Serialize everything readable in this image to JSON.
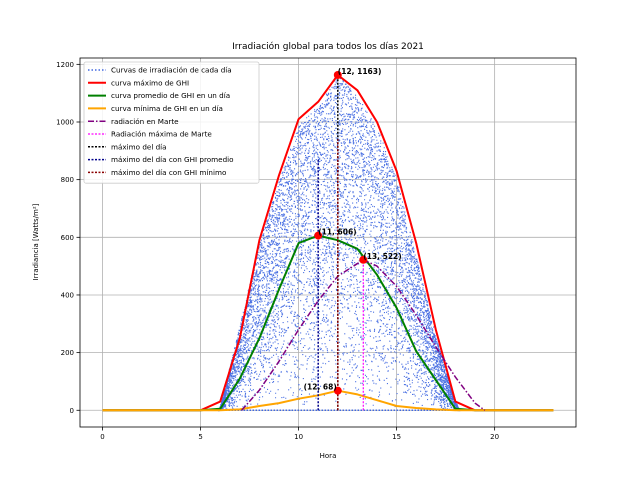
{
  "chart_data": {
    "type": "line",
    "title": "Irradiación global para todos los días 2021",
    "xlabel": "Hora",
    "ylabel": "Irradiancia [Watts/m²]",
    "xlim": [
      -1.15,
      24.15
    ],
    "ylim": [
      -58,
      1222
    ],
    "xticks": [
      0,
      5,
      10,
      15,
      20
    ],
    "yticks": [
      0,
      200,
      400,
      600,
      800,
      1000,
      1200
    ],
    "grid": true,
    "legend_position": "top-left",
    "colors": {
      "scatter": "#4169e1",
      "max": "#ff0000",
      "avg": "#008000",
      "min": "#ffa500",
      "mars": "#800080",
      "mars_max": "#ff00ff",
      "day_max": "#000000",
      "day_avg": "#00008b",
      "day_min": "#8b0000",
      "marker": "#ff0000"
    },
    "legend": [
      "Curvas de irradiación de cada día",
      "curva máximo de GHI",
      " curva promedio de GHI en un día",
      "curva mínima de GHI en un día",
      "radiación en Marte",
      "Radiación máxima de Marte",
      "máximo del día",
      "máximo del día con GHI promedio",
      "máximo del día con GHI mínimo"
    ],
    "scatter_envelope": {
      "x": [
        5.9,
        6,
        7,
        8,
        9,
        10,
        11,
        12,
        13,
        14,
        15,
        16,
        17,
        18,
        18.2
      ],
      "upper": [
        0,
        20,
        300,
        590,
        800,
        990,
        1060,
        1163,
        1090,
        980,
        800,
        530,
        250,
        30,
        0
      ]
    },
    "series": [
      {
        "name": "curva máximo de GHI",
        "x": [
          0,
          1,
          2,
          3,
          4,
          5,
          6,
          7,
          8,
          9,
          10,
          11,
          12,
          13,
          14,
          15,
          16,
          17,
          18,
          19,
          20,
          21,
          22,
          23
        ],
        "y": [
          0,
          0,
          0,
          0,
          0,
          0,
          30,
          250,
          590,
          815,
          1010,
          1070,
          1163,
          1110,
          1000,
          830,
          580,
          280,
          30,
          0,
          0,
          0,
          0,
          0
        ]
      },
      {
        "name": " curva promedio de GHI en un día",
        "x": [
          0,
          1,
          2,
          3,
          4,
          5,
          6,
          7,
          8,
          9,
          10,
          11,
          12,
          13,
          14,
          15,
          16,
          17,
          18,
          19,
          20,
          21,
          22,
          23
        ],
        "y": [
          0,
          0,
          0,
          0,
          0,
          0,
          5,
          110,
          250,
          420,
          580,
          606,
          590,
          560,
          470,
          355,
          205,
          105,
          5,
          0,
          0,
          0,
          0,
          0
        ]
      },
      {
        "name": "curva mínima de GHI en un día",
        "x": [
          0,
          1,
          2,
          3,
          4,
          5,
          6,
          7,
          8,
          9,
          10,
          11,
          12,
          13,
          14,
          15,
          16,
          17,
          18,
          19,
          20,
          21,
          22,
          23
        ],
        "y": [
          0,
          0,
          0,
          0,
          0,
          0,
          0,
          3,
          15,
          25,
          40,
          52,
          68,
          55,
          35,
          15,
          8,
          3,
          0,
          0,
          0,
          0,
          0,
          0
        ]
      },
      {
        "name": "radiación en Marte",
        "x": [
          7.1,
          8,
          9,
          10,
          11,
          12,
          13.3,
          14,
          15,
          16,
          17,
          18,
          19,
          19.5
        ],
        "y": [
          0,
          70,
          170,
          280,
          380,
          465,
          522,
          500,
          430,
          330,
          220,
          115,
          25,
          0
        ]
      }
    ],
    "vlines": [
      {
        "name": "máximo del día",
        "x": 12,
        "ymax": 1163
      },
      {
        "name": "máximo del día con GHI promedio",
        "x": 11,
        "ymax": 870
      },
      {
        "name": "máximo del día con GHI mínimo",
        "x": 12,
        "ymax": 940
      },
      {
        "name": "Radiación máxima de Marte",
        "x": 13.3,
        "ymax": 522
      }
    ],
    "annotations": [
      {
        "x": 12,
        "y": 1163,
        "text": "(12, 1163)",
        "place": "right"
      },
      {
        "x": 11,
        "y": 606,
        "text": "(11, 606)",
        "place": "right"
      },
      {
        "x": 13.3,
        "y": 522,
        "text": "(13, 522)",
        "place": "right"
      },
      {
        "x": 12,
        "y": 68,
        "text": "(12, 68)",
        "place": "left"
      }
    ]
  }
}
